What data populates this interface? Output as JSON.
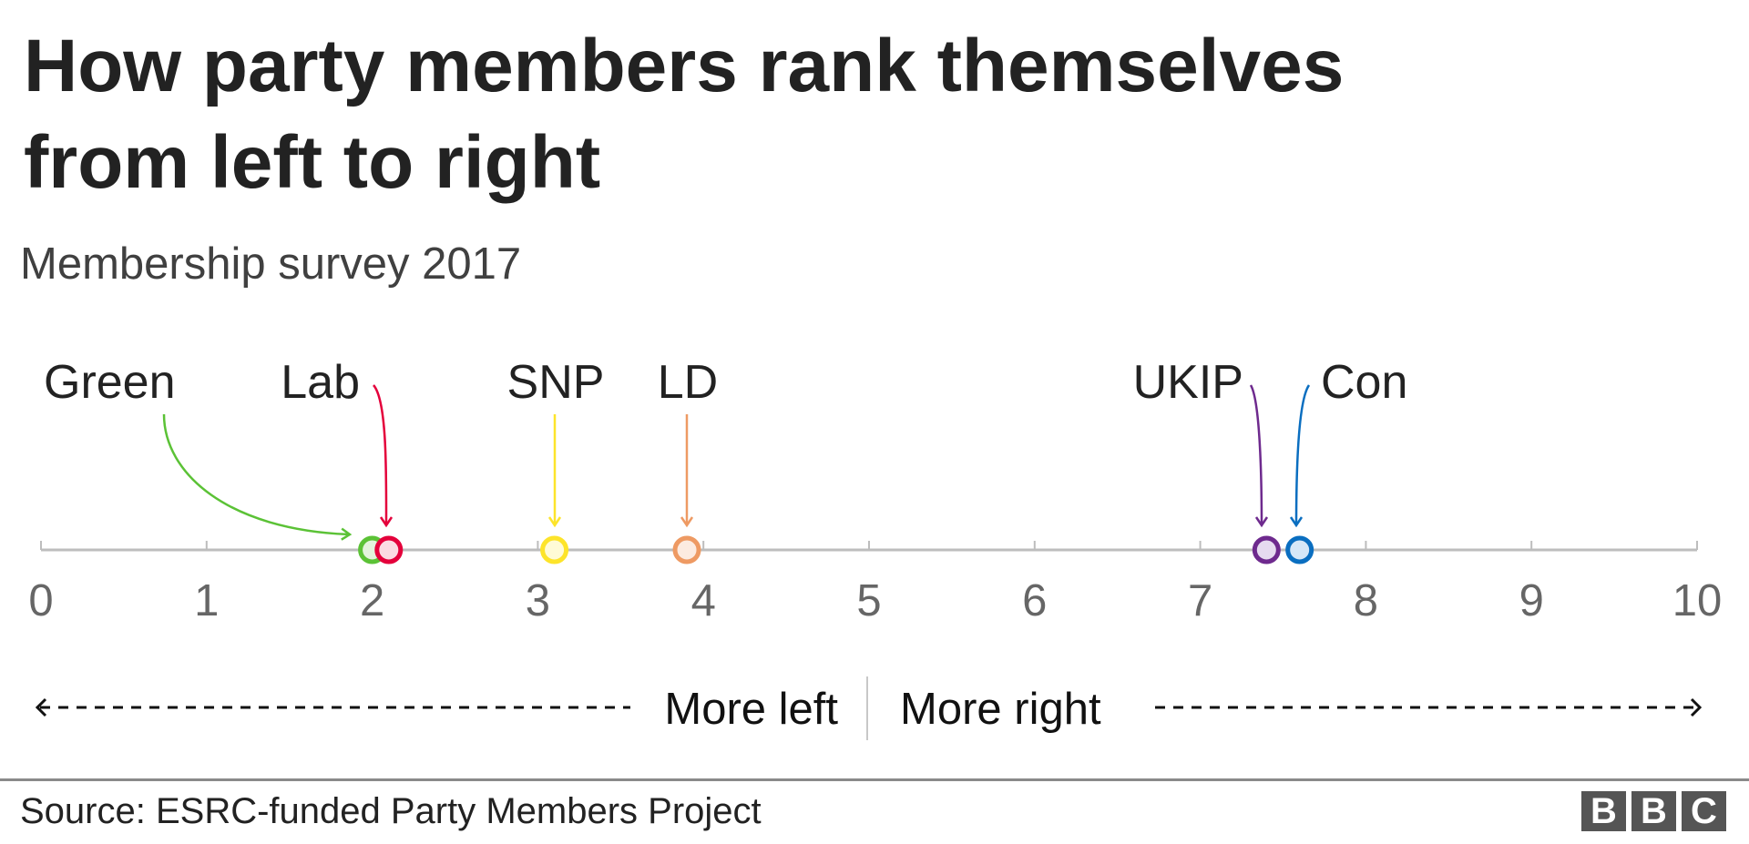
{
  "chart_data": {
    "type": "scatter",
    "title": "How party members rank themselves from left to right",
    "subtitle": "Membership survey 2017",
    "xlim": [
      0,
      10
    ],
    "x_ticks": [
      "0",
      "1",
      "2",
      "3",
      "4",
      "5",
      "6",
      "7",
      "8",
      "9",
      "10"
    ],
    "points": [
      {
        "label": "Green",
        "x": 2.0,
        "color": "#5bc236",
        "fill": "#e3f3dc"
      },
      {
        "label": "Lab",
        "x": 2.1,
        "color": "#e4003b",
        "fill": "#fbdbe2"
      },
      {
        "label": "SNP",
        "x": 3.1,
        "color": "#fde42a",
        "fill": "#fffbd6"
      },
      {
        "label": "LD",
        "x": 3.9,
        "color": "#ee9a63",
        "fill": "#fcebe0"
      },
      {
        "label": "UKIP",
        "x": 7.4,
        "color": "#6e2a8e",
        "fill": "#e6dbf0"
      },
      {
        "label": "Con",
        "x": 7.6,
        "color": "#0a6ec0",
        "fill": "#d6e7f7"
      }
    ],
    "direction_left": "More left",
    "direction_right": "More right",
    "grid": false,
    "legend": "none"
  },
  "footer": {
    "source": "Source: ESRC-funded Party Members Project",
    "logo": [
      "B",
      "B",
      "C"
    ]
  }
}
